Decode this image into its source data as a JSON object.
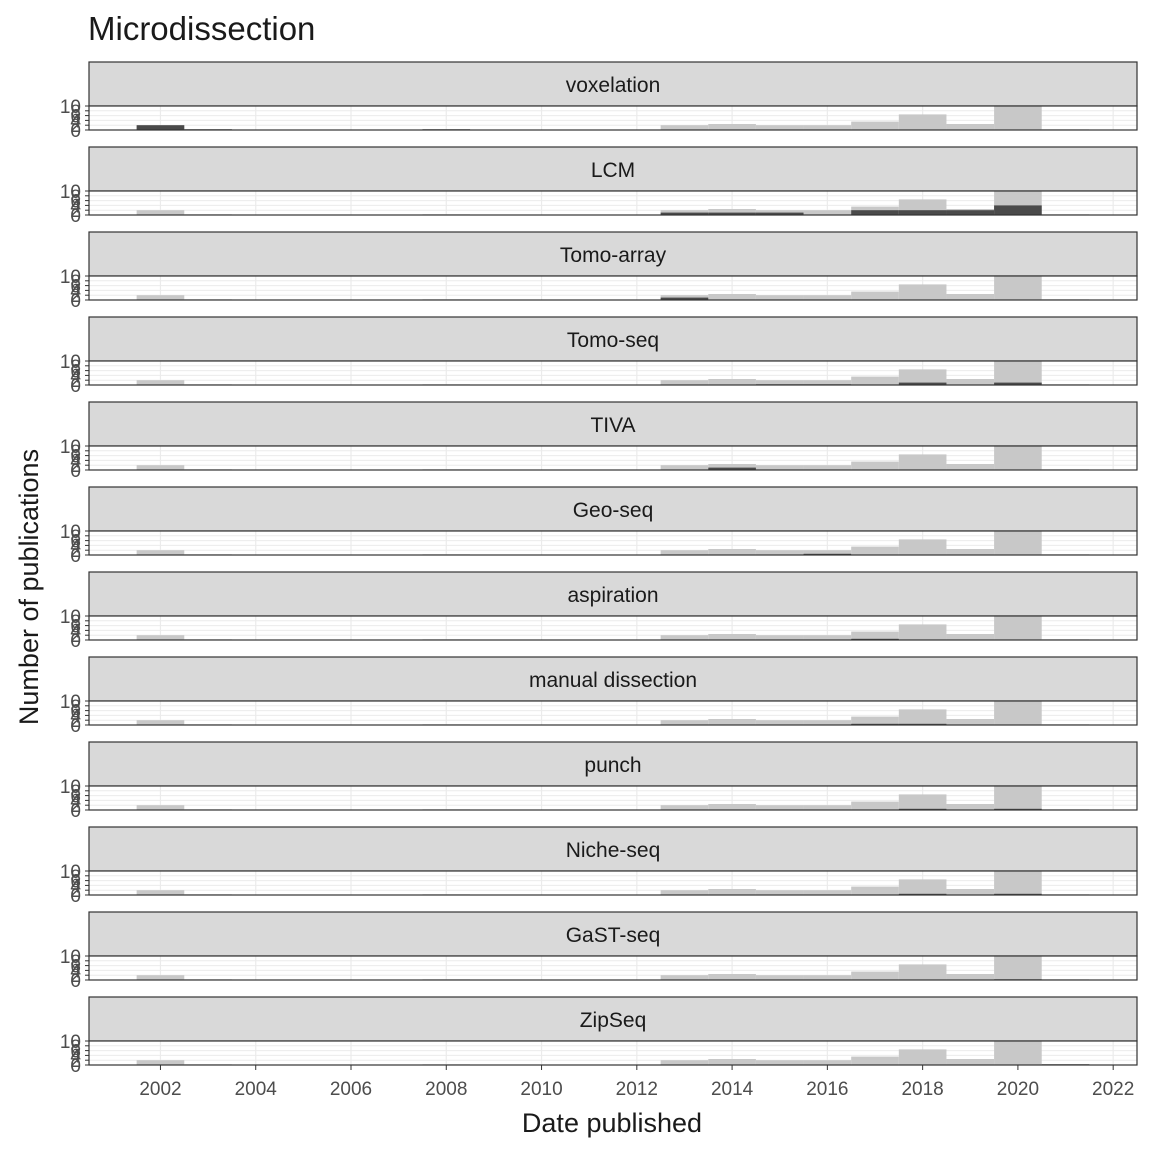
{
  "chart_data": {
    "type": "bar",
    "title": "Microdissection",
    "xlabel": "Date published",
    "ylabel": "Number of publications",
    "x_ticks": [
      "2002",
      "2004",
      "2006",
      "2008",
      "2010",
      "2012",
      "2014",
      "2016",
      "2018",
      "2020",
      "2022"
    ],
    "y_ticks": [
      "0",
      "2",
      "4",
      "6",
      "8",
      "10"
    ],
    "xlim": [
      2000.5,
      2022.5
    ],
    "ylim": [
      0,
      10
    ],
    "bin_width": 1,
    "bins": [
      2002,
      2003,
      2008,
      2013,
      2014,
      2015,
      2016,
      2017,
      2018,
      2019,
      2020,
      2021
    ],
    "total_counts": [
      2,
      0.3,
      0.3,
      2,
      2.5,
      2,
      2,
      3.5,
      6.5,
      2.5,
      10,
      0.3
    ],
    "background_color": "#c8c8c8",
    "highlight_color": "#4a4a4a",
    "panels": [
      {
        "label": "voxelation",
        "counts": [
          2,
          0.3,
          0.3,
          0,
          0,
          0,
          0,
          0,
          0,
          0,
          0,
          0
        ]
      },
      {
        "label": "LCM",
        "counts": [
          0,
          0,
          0,
          1,
          1,
          1,
          0,
          2,
          2,
          2,
          4,
          0
        ]
      },
      {
        "label": "Tomo-array",
        "counts": [
          0,
          0,
          0,
          1,
          0,
          0,
          0,
          0,
          0,
          0,
          0,
          0
        ]
      },
      {
        "label": "Tomo-seq",
        "counts": [
          0,
          0,
          0,
          0,
          0,
          0.3,
          0.3,
          0,
          1,
          0,
          1,
          0
        ]
      },
      {
        "label": "TIVA",
        "counts": [
          0,
          0,
          0,
          0,
          1,
          0,
          0,
          0,
          0,
          0,
          0,
          0
        ]
      },
      {
        "label": "Geo-seq",
        "counts": [
          0,
          0,
          0,
          0,
          0,
          0,
          0.5,
          0,
          0,
          0,
          0,
          0
        ]
      },
      {
        "label": "aspiration",
        "counts": [
          0,
          0,
          0,
          0,
          0,
          0,
          0,
          0.5,
          0,
          0,
          0,
          0
        ]
      },
      {
        "label": "manual dissection",
        "counts": [
          0,
          0,
          0,
          0,
          0,
          0,
          0,
          0.5,
          0.5,
          0,
          0,
          0
        ]
      },
      {
        "label": "punch",
        "counts": [
          0,
          0,
          0,
          0,
          0,
          0,
          0,
          0,
          0.5,
          0,
          0.5,
          0
        ]
      },
      {
        "label": "Niche-seq",
        "counts": [
          0,
          0,
          0,
          0,
          0,
          0,
          0,
          0,
          0.5,
          0,
          0.5,
          0
        ]
      },
      {
        "label": "GaST-seq",
        "counts": [
          0,
          0,
          0,
          0,
          0,
          0,
          0,
          0,
          0,
          0,
          0.3,
          0
        ]
      },
      {
        "label": "ZipSeq",
        "counts": [
          0,
          0,
          0,
          0,
          0,
          0,
          0,
          0,
          0,
          0,
          0,
          0.3
        ]
      }
    ]
  }
}
